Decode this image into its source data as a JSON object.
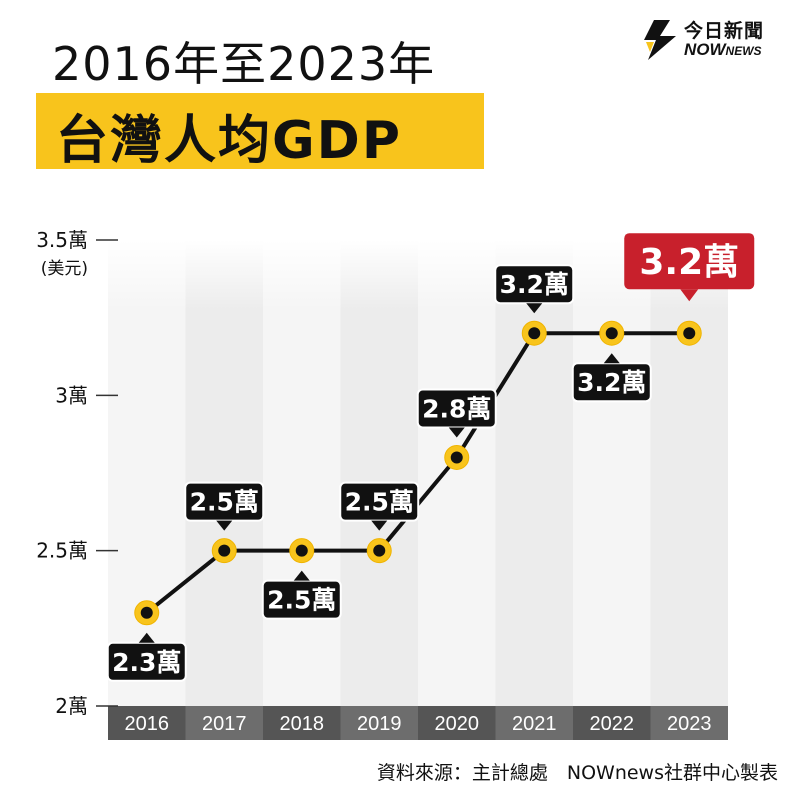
{
  "title": {
    "line1": "2016年至2023年",
    "line2": "台灣人均GDP"
  },
  "logo": {
    "chinese": "今日新聞",
    "english_main": "NOW",
    "english_small": "NEWS",
    "mark_icon": "nownews-flame-icon"
  },
  "source": "資料來源：主計總處　NOWnews社群中心製表",
  "colors": {
    "accent_yellow": "#f8c41c",
    "highlight_red": "#c8202c",
    "line": "#111111",
    "band_dark": "#ececec",
    "band_light": "#f5f5f5",
    "axis_bar": "#555555"
  },
  "chart_data": {
    "type": "line",
    "categories": [
      "2016",
      "2017",
      "2018",
      "2019",
      "2020",
      "2021",
      "2022",
      "2023"
    ],
    "values": [
      2.3,
      2.5,
      2.5,
      2.5,
      2.8,
      3.2,
      3.2,
      3.2
    ],
    "data_labels": [
      "2.3萬",
      "2.5萬",
      "2.5萬",
      "2.5萬",
      "2.8萬",
      "3.2萬",
      "3.2萬",
      "3.2萬"
    ],
    "label_placement": [
      "below",
      "above",
      "below",
      "above",
      "above",
      "above",
      "below",
      "highlight"
    ],
    "ylim": [
      2,
      3.5
    ],
    "yticks": [
      {
        "value": 2,
        "label": "2萬"
      },
      {
        "value": 2.5,
        "label": "2.5萬"
      },
      {
        "value": 3,
        "label": "3萬"
      },
      {
        "value": 3.5,
        "label": "3.5萬"
      }
    ],
    "yunit": "(美元)",
    "grid": false
  }
}
